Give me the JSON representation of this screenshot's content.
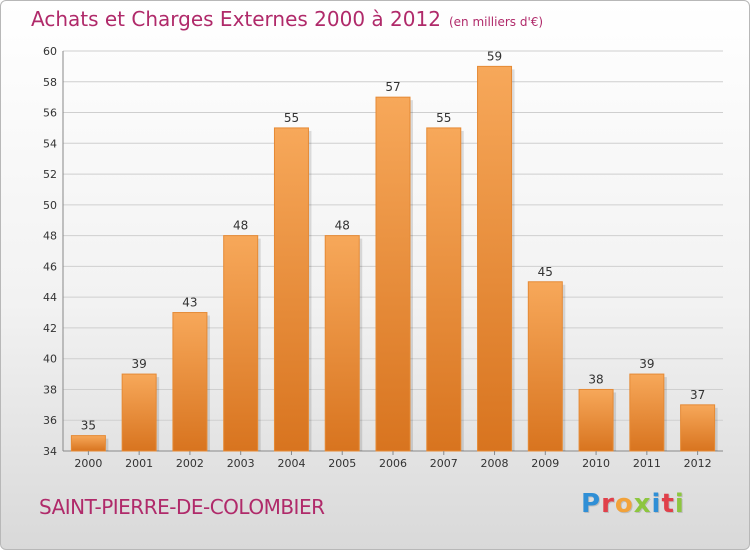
{
  "header": {
    "title": "Achats et Charges Externes 2000 à 2012",
    "unit": "(en milliers d'€)"
  },
  "footer": {
    "place": "SAINT-PIERRE-DE-COLOMBIER",
    "logo": "Proxiti",
    "logo_colors": [
      "#2f8fd6",
      "#e0404a",
      "#f2a23a",
      "#8dc63f",
      "#2f8fd6",
      "#e0404a",
      "#8dc63f"
    ]
  },
  "colors": {
    "bar_top": "#f7a85a",
    "bar_bottom": "#d8741f",
    "bar_edge": "#e58a35",
    "title": "#b02a6a",
    "grid": "#cfcfcf"
  },
  "chart_data": {
    "type": "bar",
    "title": "Achats et Charges Externes 2000 à 2012",
    "subtitle": "(en milliers d'€)",
    "categories": [
      "2000",
      "2001",
      "2002",
      "2003",
      "2004",
      "2005",
      "2006",
      "2007",
      "2008",
      "2009",
      "2010",
      "2011",
      "2012"
    ],
    "values": [
      35,
      39,
      43,
      48,
      55,
      48,
      57,
      55,
      59,
      45,
      38,
      39,
      37
    ],
    "ylim": [
      34,
      60
    ],
    "yticks": [
      34,
      36,
      38,
      40,
      42,
      44,
      46,
      48,
      50,
      52,
      54,
      56,
      58,
      60
    ],
    "grid": "horizontal",
    "data_labels": true
  }
}
